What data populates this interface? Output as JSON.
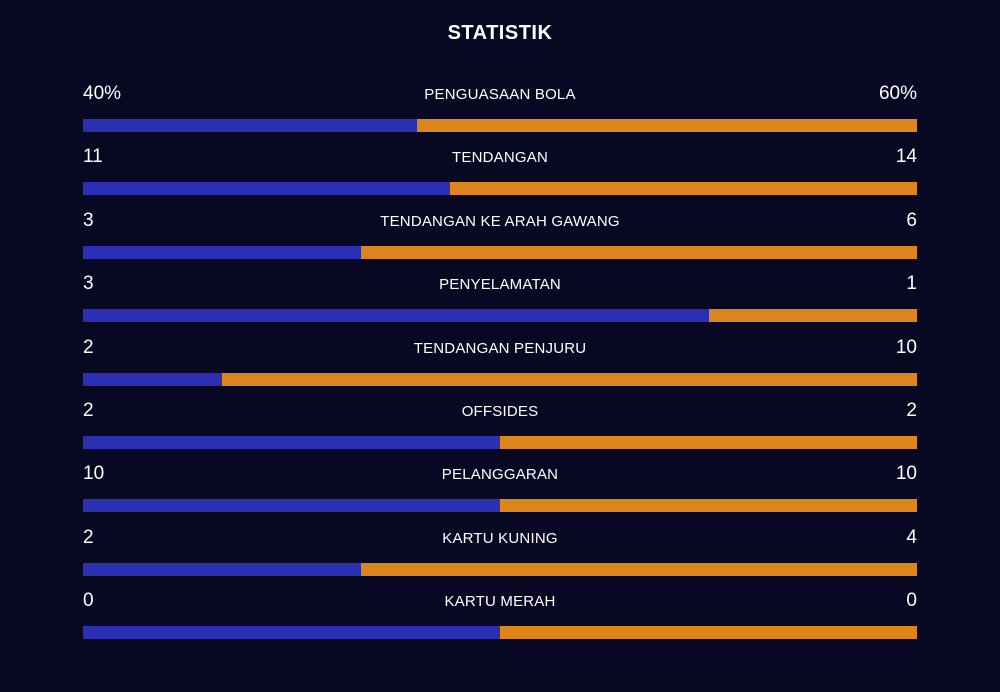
{
  "title": "STATISTIK",
  "colors": {
    "background": "#080823",
    "home_bar": "#2b2fb3",
    "away_bar": "#dc851b",
    "text": "#ffffff"
  },
  "stats": [
    {
      "label": "PENGUASAAN BOLA",
      "home": "40%",
      "away": "60%",
      "home_share": 0.4
    },
    {
      "label": "TENDANGAN",
      "home": "11",
      "away": "14",
      "home_share": 0.44
    },
    {
      "label": "TENDANGAN KE ARAH GAWANG",
      "home": "3",
      "away": "6",
      "home_share": 0.3333
    },
    {
      "label": "PENYELAMATAN",
      "home": "3",
      "away": "1",
      "home_share": 0.75
    },
    {
      "label": "TENDANGAN PENJURU",
      "home": "2",
      "away": "10",
      "home_share": 0.1667
    },
    {
      "label": "OFFSIDES",
      "home": "2",
      "away": "2",
      "home_share": 0.5
    },
    {
      "label": "PELANGGARAN",
      "home": "10",
      "away": "10",
      "home_share": 0.5
    },
    {
      "label": "KARTU KUNING",
      "home": "2",
      "away": "4",
      "home_share": 0.3333
    },
    {
      "label": "KARTU MERAH",
      "home": "0",
      "away": "0",
      "home_share": 0.5
    }
  ]
}
